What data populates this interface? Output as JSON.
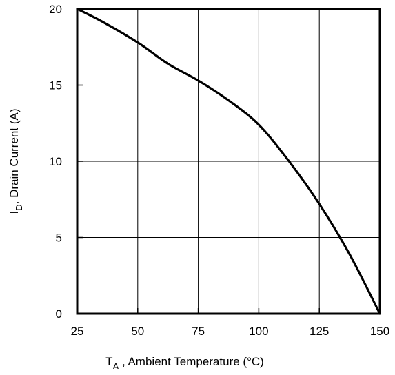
{
  "chart_data": {
    "type": "line",
    "title": "",
    "xlabel": {
      "main": "T",
      "sub": "A",
      "rest": " , Ambient Temperature (°C)"
    },
    "ylabel": {
      "main": "I",
      "sub": "D",
      "rest": ",  Drain Current (A)"
    },
    "xlim": [
      25,
      150
    ],
    "ylim": [
      0,
      20
    ],
    "xticks": [
      25,
      50,
      75,
      100,
      125,
      150
    ],
    "yticks": [
      0,
      5,
      10,
      15,
      20
    ],
    "grid": true,
    "series": [
      {
        "x": [
          25,
          35,
          50,
          62.5,
          75,
          87.5,
          100,
          112.5,
          125,
          137.5,
          150
        ],
        "y": [
          20,
          19.2,
          17.8,
          16.4,
          15.3,
          14.0,
          12.4,
          10.0,
          7.2,
          3.9,
          0
        ]
      }
    ]
  }
}
